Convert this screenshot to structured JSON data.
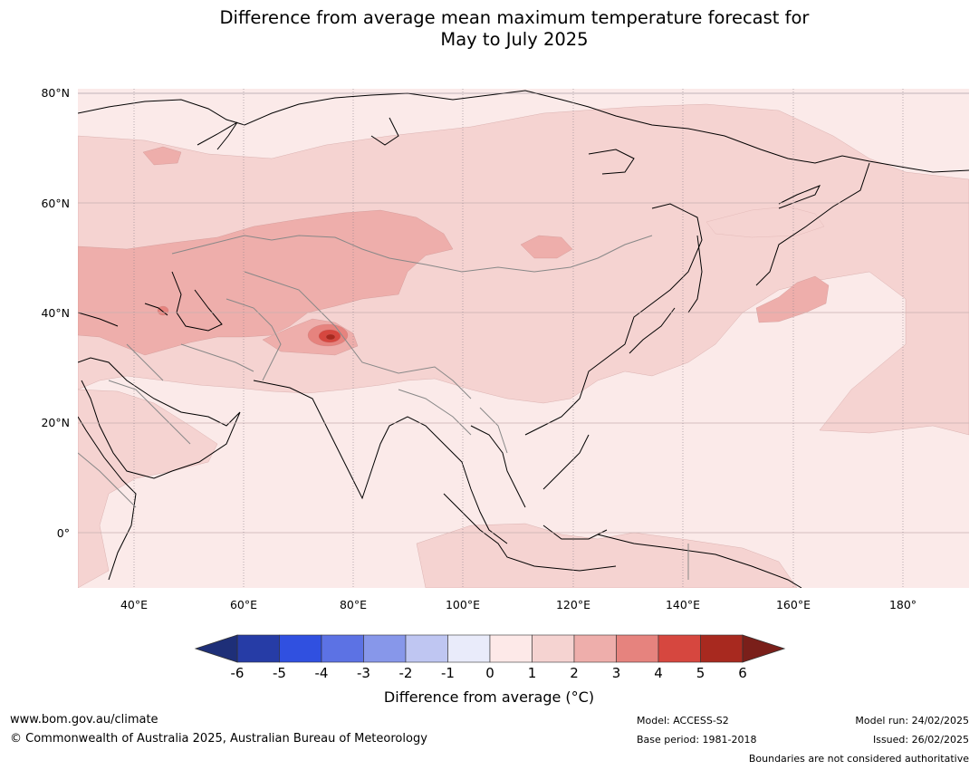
{
  "title": {
    "line1": "Difference from average mean maximum temperature forecast for",
    "line2": "May to July 2025"
  },
  "map": {
    "lat_labels": [
      "80°N",
      "60°N",
      "40°N",
      "20°N",
      "0°"
    ],
    "lon_labels": [
      "40°E",
      "60°E",
      "80°E",
      "100°E",
      "120°E",
      "140°E",
      "160°E",
      "180°"
    ],
    "ocean_color": "#fbeae9",
    "bands": {
      "b0_1": "#fbeae9",
      "b1_2": "#f5d3d1",
      "b2_3": "#eeaeab",
      "b3_4": "#e6837e",
      "b4_5": "#d6473f",
      "b5_6": "#a8291f"
    },
    "coast_color": "#000000",
    "border_color": "#888888"
  },
  "colorbar": {
    "ticks": [
      "-6",
      "-5",
      "-4",
      "-3",
      "-2",
      "-1",
      "0",
      "1",
      "2",
      "3",
      "4",
      "5",
      "6"
    ],
    "colors": [
      "#263ca6",
      "#3050e0",
      "#5c72e4",
      "#8797ea",
      "#bfc6f2",
      "#e9ebfa",
      "#fde9e8",
      "#f5d3d1",
      "#eeaeab",
      "#e6837e",
      "#d6473f",
      "#a8291f"
    ],
    "under_color": "#1e2f78",
    "over_color": "#7a1f1a",
    "label": "Difference from average (°C)"
  },
  "footer": {
    "site": "www.bom.gov.au/climate",
    "copyright": "© Commonwealth of Australia 2025, Australian Bureau of Meteorology",
    "model": "Model: ACCESS-S2",
    "base_period": "Base period: 1981-2018",
    "model_run": "Model run: 24/02/2025",
    "issued": "Issued: 26/02/2025",
    "disclaimer": "Boundaries are not considered authoritative"
  }
}
